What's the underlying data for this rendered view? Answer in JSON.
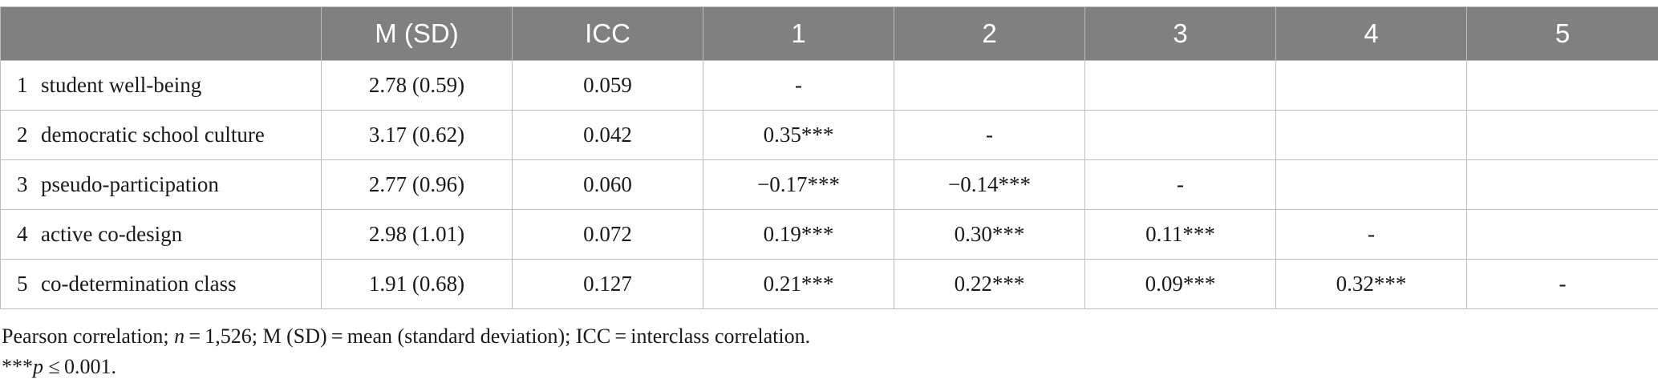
{
  "table": {
    "headers": [
      "",
      "M (SD)",
      "ICC",
      "1",
      "2",
      "3",
      "4",
      "5"
    ],
    "rows": [
      {
        "num": "1",
        "label": "student well-being",
        "msd": "2.78 (0.59)",
        "icc": "0.059",
        "cells": [
          "-",
          "",
          "",
          "",
          ""
        ]
      },
      {
        "num": "2",
        "label": "democratic school culture",
        "msd": "3.17 (0.62)",
        "icc": "0.042",
        "cells": [
          "0.35***",
          "-",
          "",
          "",
          ""
        ]
      },
      {
        "num": "3",
        "label": "pseudo-participation",
        "msd": "2.77 (0.96)",
        "icc": "0.060",
        "cells": [
          "−0.17***",
          "−0.14***",
          "-",
          "",
          ""
        ]
      },
      {
        "num": "4",
        "label": "active co-design",
        "msd": "2.98 (1.01)",
        "icc": "0.072",
        "cells": [
          "0.19***",
          "0.30***",
          "0.11***",
          "-",
          ""
        ]
      },
      {
        "num": "5",
        "label": "co-determination class",
        "msd": "1.91 (0.68)",
        "icc": "0.127",
        "cells": [
          "0.21***",
          "0.22***",
          "0.09***",
          "0.32***",
          "-"
        ]
      }
    ]
  },
  "notes": {
    "line1_a": "Pearson correlation; ",
    "line1_n": "n",
    "line1_b": " = 1,526; M (SD) = mean (standard deviation); ICC = interclass correlation.",
    "line2_a": "***",
    "line2_p": "p",
    "line2_b": " ≤ 0.001."
  }
}
